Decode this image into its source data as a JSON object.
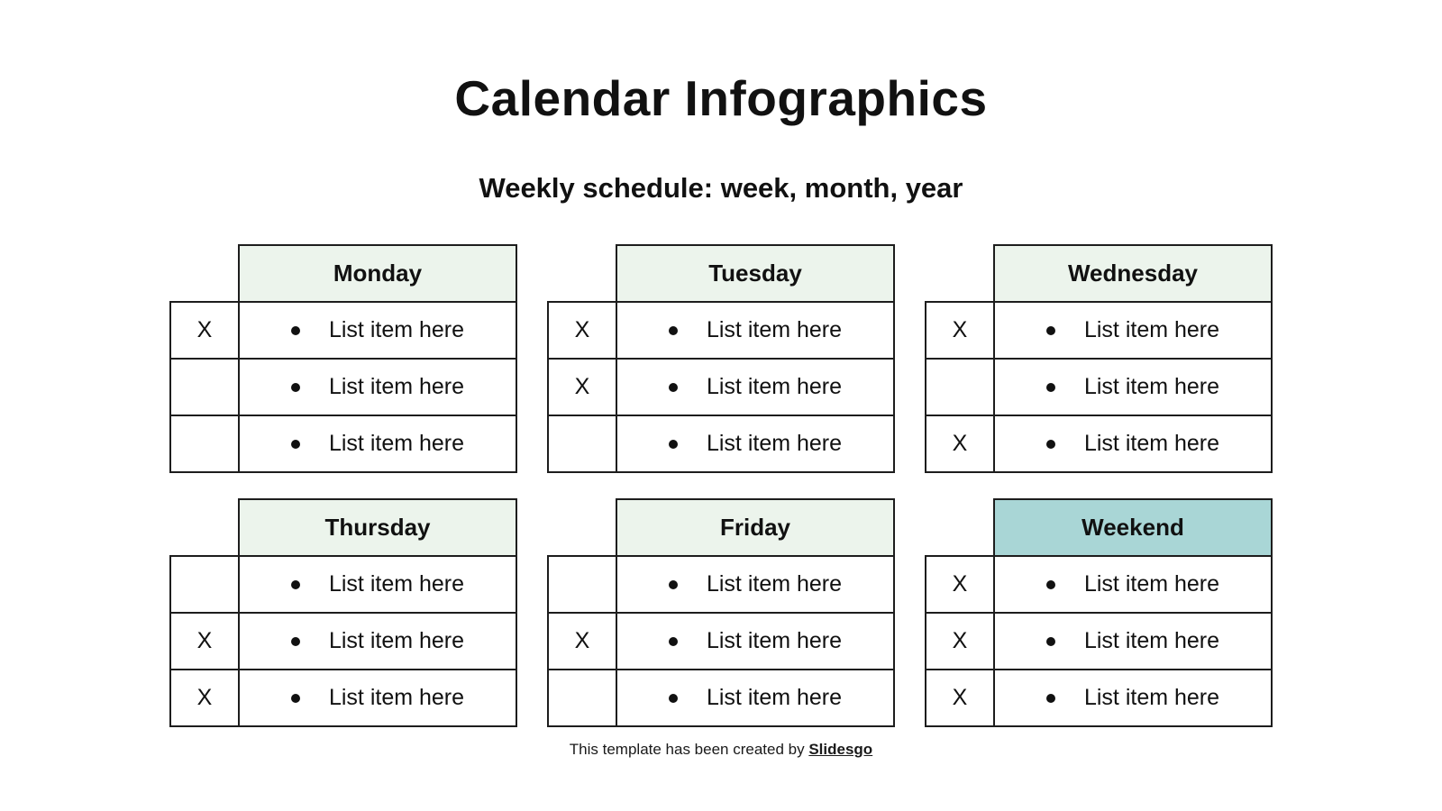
{
  "slide": {
    "title": "Calendar Infographics",
    "subtitle": "Weekly schedule: week, month, year"
  },
  "colors": {
    "day_header_bg": "#ecf4ec",
    "weekend_header_bg": "#a9d6d6",
    "border": "#1d1d1d",
    "text": "#111111",
    "background": "#ffffff"
  },
  "icons": {
    "bullet": "filled-circle"
  },
  "tables": [
    {
      "day": "Monday",
      "highlighted": false,
      "rows": [
        {
          "mark": "X",
          "item": "List item here"
        },
        {
          "mark": "",
          "item": "List item here"
        },
        {
          "mark": "",
          "item": "List item here"
        }
      ]
    },
    {
      "day": "Tuesday",
      "highlighted": false,
      "rows": [
        {
          "mark": "X",
          "item": "List item here"
        },
        {
          "mark": "X",
          "item": "List item here"
        },
        {
          "mark": "",
          "item": "List item here"
        }
      ]
    },
    {
      "day": "Wednesday",
      "highlighted": false,
      "rows": [
        {
          "mark": "X",
          "item": "List item here"
        },
        {
          "mark": "",
          "item": "List item here"
        },
        {
          "mark": "X",
          "item": "List item here"
        }
      ]
    },
    {
      "day": "Thursday",
      "highlighted": false,
      "rows": [
        {
          "mark": "",
          "item": "List item here"
        },
        {
          "mark": "X",
          "item": "List item here"
        },
        {
          "mark": "X",
          "item": "List item here"
        }
      ]
    },
    {
      "day": "Friday",
      "highlighted": false,
      "rows": [
        {
          "mark": "",
          "item": "List item here"
        },
        {
          "mark": "X",
          "item": "List item here"
        },
        {
          "mark": "",
          "item": "List item here"
        }
      ]
    },
    {
      "day": "Weekend",
      "highlighted": true,
      "rows": [
        {
          "mark": "X",
          "item": "List item here"
        },
        {
          "mark": "X",
          "item": "List item here"
        },
        {
          "mark": "X",
          "item": "List item here"
        }
      ]
    }
  ],
  "footer": {
    "text": "This template has been created by",
    "brand": "Slidesgo"
  }
}
